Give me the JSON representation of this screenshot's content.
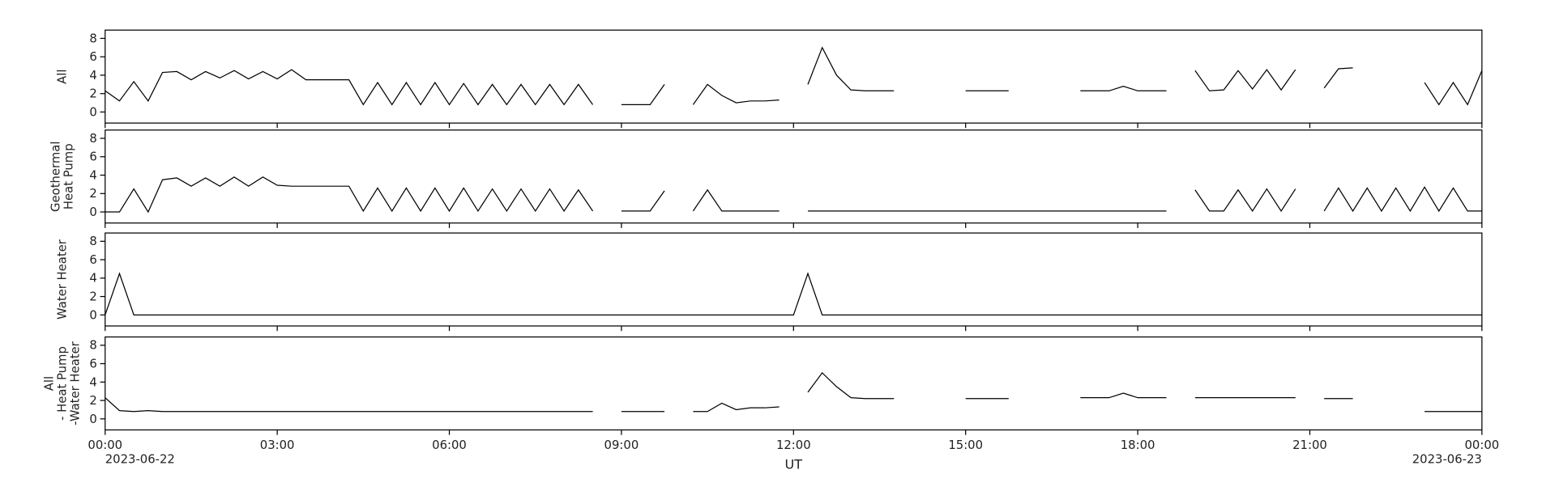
{
  "chart_data": [
    {
      "type": "line",
      "y_label": [
        "All"
      ],
      "color": "#000000",
      "xlim": [
        0,
        24
      ],
      "ylim": [
        -1.2,
        8.9
      ],
      "yticks": [
        0,
        2,
        4,
        6,
        8
      ],
      "xticks": [
        0,
        3,
        6,
        9,
        12,
        15,
        18,
        21,
        24
      ],
      "x": [
        0,
        0.25,
        0.5,
        0.75,
        1,
        1.25,
        1.5,
        1.75,
        2,
        2.25,
        2.5,
        2.75,
        3,
        3.25,
        3.5,
        3.75,
        4,
        4.25,
        4.5,
        4.75,
        5,
        5.25,
        5.5,
        5.75,
        6,
        6.25,
        6.5,
        6.75,
        7,
        7.25,
        7.5,
        7.75,
        8,
        8.25,
        8.5,
        8.75,
        9,
        9.25,
        9.5,
        9.75,
        10,
        10.25,
        10.5,
        10.75,
        11,
        11.25,
        11.5,
        11.75,
        12,
        12.25,
        12.5,
        12.75,
        13,
        13.25,
        13.5,
        13.75,
        14,
        14.25,
        14.5,
        14.75,
        15,
        15.25,
        15.5,
        15.75,
        16,
        16.25,
        16.5,
        16.75,
        17,
        17.25,
        17.5,
        17.75,
        18,
        18.25,
        18.5,
        18.75,
        19,
        19.25,
        19.5,
        19.75,
        20,
        20.25,
        20.5,
        20.75,
        21,
        21.25,
        21.5,
        21.75,
        22,
        22.25,
        22.5,
        22.75,
        23,
        23.25,
        23.5,
        23.75,
        24
      ],
      "values": [
        2.3,
        1.2,
        3.3,
        1.2,
        4.3,
        4.4,
        3.5,
        4.4,
        3.7,
        4.5,
        3.6,
        4.4,
        3.6,
        4.6,
        3.5,
        3.5,
        3.5,
        3.5,
        0.8,
        3.2,
        0.8,
        3.2,
        0.8,
        3.2,
        0.8,
        3.1,
        0.8,
        3.0,
        0.8,
        3.0,
        0.8,
        3.0,
        0.8,
        3.0,
        0.8,
        null,
        0.8,
        0.8,
        0.8,
        3.0,
        null,
        0.8,
        3.0,
        1.8,
        1.0,
        1.2,
        1.2,
        1.3,
        null,
        3.0,
        7.0,
        4.0,
        2.4,
        2.3,
        2.3,
        2.3,
        null,
        null,
        null,
        null,
        2.3,
        2.3,
        2.3,
        2.3,
        null,
        null,
        null,
        null,
        2.3,
        2.3,
        2.3,
        2.8,
        2.3,
        2.3,
        2.3,
        null,
        4.5,
        2.3,
        2.4,
        4.5,
        2.5,
        4.6,
        2.4,
        4.6,
        null,
        2.6,
        4.7,
        4.8,
        null,
        null,
        null,
        null,
        3.2,
        0.8,
        3.2,
        0.8,
        4.5
      ]
    },
    {
      "type": "line",
      "y_label": [
        "Geothermal",
        "Heat Pump"
      ],
      "color": "#000000",
      "xlim": [
        0,
        24
      ],
      "ylim": [
        -1.2,
        8.9
      ],
      "yticks": [
        0,
        2,
        4,
        6,
        8
      ],
      "xticks": [
        0,
        3,
        6,
        9,
        12,
        15,
        18,
        21,
        24
      ],
      "x": [
        0,
        0.25,
        0.5,
        0.75,
        1,
        1.25,
        1.5,
        1.75,
        2,
        2.25,
        2.5,
        2.75,
        3,
        3.25,
        3.5,
        3.75,
        4,
        4.25,
        4.5,
        4.75,
        5,
        5.25,
        5.5,
        5.75,
        6,
        6.25,
        6.5,
        6.75,
        7,
        7.25,
        7.5,
        7.75,
        8,
        8.25,
        8.5,
        8.75,
        9,
        9.25,
        9.5,
        9.75,
        10,
        10.25,
        10.5,
        10.75,
        11,
        11.25,
        11.5,
        11.75,
        12,
        12.25,
        12.5,
        12.75,
        13,
        13.25,
        13.5,
        13.75,
        14,
        14.25,
        14.5,
        14.75,
        15,
        15.25,
        15.5,
        15.75,
        16,
        16.25,
        16.5,
        16.75,
        17,
        17.25,
        17.5,
        17.75,
        18,
        18.25,
        18.5,
        18.75,
        19,
        19.25,
        19.5,
        19.75,
        20,
        20.25,
        20.5,
        20.75,
        21,
        21.25,
        21.5,
        21.75,
        22,
        22.25,
        22.5,
        22.75,
        23,
        23.25,
        23.5,
        23.75,
        24
      ],
      "values": [
        0,
        0,
        2.5,
        0,
        3.5,
        3.7,
        2.8,
        3.7,
        2.8,
        3.8,
        2.8,
        3.8,
        2.9,
        2.8,
        2.8,
        2.8,
        2.8,
        2.8,
        0.1,
        2.6,
        0.1,
        2.6,
        0.1,
        2.6,
        0.1,
        2.6,
        0.1,
        2.5,
        0.1,
        2.5,
        0.1,
        2.5,
        0.1,
        2.4,
        0.1,
        null,
        0.1,
        0.1,
        0.1,
        2.3,
        null,
        0.1,
        2.4,
        0.1,
        0.1,
        0.1,
        0.1,
        0.1,
        null,
        0.1,
        0.1,
        0.1,
        0.1,
        0.1,
        0.1,
        0.1,
        0.1,
        0.1,
        0.1,
        0.1,
        0.1,
        0.1,
        0.1,
        0.1,
        0.1,
        0.1,
        0.1,
        0.1,
        0.1,
        0.1,
        0.1,
        0.1,
        0.1,
        0.1,
        0.1,
        null,
        2.4,
        0.1,
        0.1,
        2.4,
        0.1,
        2.5,
        0.1,
        2.5,
        null,
        0.1,
        2.6,
        0.1,
        2.6,
        0.1,
        2.6,
        0.1,
        2.7,
        0.1,
        2.6,
        0.1,
        0.1
      ]
    },
    {
      "type": "line",
      "y_label": [
        "Water Heater"
      ],
      "color": "#000000",
      "xlim": [
        0,
        24
      ],
      "ylim": [
        -1.2,
        8.9
      ],
      "yticks": [
        0,
        2,
        4,
        6,
        8
      ],
      "xticks": [
        0,
        3,
        6,
        9,
        12,
        15,
        18,
        21,
        24
      ],
      "x": [
        0,
        0.25,
        0.5,
        0.75,
        1,
        1.25,
        1.5,
        1.75,
        2,
        2.25,
        2.5,
        2.75,
        3,
        3.25,
        3.5,
        3.75,
        4,
        4.25,
        4.5,
        4.75,
        5,
        5.25,
        5.5,
        5.75,
        6,
        6.25,
        6.5,
        6.75,
        7,
        7.25,
        7.5,
        7.75,
        8,
        8.25,
        8.5,
        8.75,
        9,
        9.25,
        9.5,
        9.75,
        10,
        10.25,
        10.5,
        10.75,
        11,
        11.25,
        11.5,
        11.75,
        12,
        12.25,
        12.5,
        12.75,
        13,
        13.25,
        13.5,
        13.75,
        14,
        14.25,
        14.5,
        14.75,
        15,
        15.25,
        15.5,
        15.75,
        16,
        16.25,
        16.5,
        16.75,
        17,
        17.25,
        17.5,
        17.75,
        18,
        18.25,
        18.5,
        18.75,
        19,
        19.25,
        19.5,
        19.75,
        20,
        20.25,
        20.5,
        20.75,
        21,
        21.25,
        21.5,
        21.75,
        22,
        22.25,
        22.5,
        22.75,
        23,
        23.25,
        23.5,
        23.75,
        24
      ],
      "values": [
        0,
        4.5,
        0,
        0,
        0,
        0,
        0,
        0,
        0,
        0,
        0,
        0,
        0,
        0,
        0,
        0,
        0,
        0,
        0,
        0,
        0,
        0,
        0,
        0,
        0,
        0,
        0,
        0,
        0,
        0,
        0,
        0,
        0,
        0,
        0,
        0,
        0,
        0,
        0,
        0,
        0,
        0,
        0,
        0,
        0,
        0,
        0,
        0,
        0,
        4.5,
        0,
        0,
        0,
        0,
        0,
        0,
        0,
        0,
        0,
        0,
        0,
        0,
        0,
        0,
        0,
        0,
        0,
        0,
        0,
        0,
        0,
        0,
        0,
        0,
        0,
        0,
        0,
        0,
        0,
        0,
        0,
        0,
        0,
        0,
        0,
        0,
        0,
        0,
        0,
        0,
        0,
        0,
        0,
        0,
        0,
        0,
        0
      ]
    },
    {
      "type": "line",
      "y_label": [
        "All",
        "- Heat Pump",
        "-Water Heater"
      ],
      "color": "#000000",
      "xlim": [
        0,
        24
      ],
      "ylim": [
        -1.2,
        8.9
      ],
      "yticks": [
        0,
        2,
        4,
        6,
        8
      ],
      "xticks": [
        {
          "value": 0,
          "label": "00:00"
        },
        {
          "value": 3,
          "label": "03:00"
        },
        {
          "value": 6,
          "label": "06:00"
        },
        {
          "value": 9,
          "label": "09:00"
        },
        {
          "value": 12,
          "label": "12:00"
        },
        {
          "value": 15,
          "label": "15:00"
        },
        {
          "value": 18,
          "label": "18:00"
        },
        {
          "value": 21,
          "label": "21:00"
        },
        {
          "value": 24,
          "label": "00:00"
        }
      ],
      "x_dates": [
        {
          "value": 0,
          "label": "2023-06-22"
        },
        {
          "value": 24,
          "label": "2023-06-23"
        }
      ],
      "x_label": "UT",
      "x": [
        0,
        0.25,
        0.5,
        0.75,
        1,
        1.25,
        1.5,
        1.75,
        2,
        2.25,
        2.5,
        2.75,
        3,
        3.25,
        3.5,
        3.75,
        4,
        4.25,
        4.5,
        4.75,
        5,
        5.25,
        5.5,
        5.75,
        6,
        6.25,
        6.5,
        6.75,
        7,
        7.25,
        7.5,
        7.75,
        8,
        8.25,
        8.5,
        8.75,
        9,
        9.25,
        9.5,
        9.75,
        10,
        10.25,
        10.5,
        10.75,
        11,
        11.25,
        11.5,
        11.75,
        12,
        12.25,
        12.5,
        12.75,
        13,
        13.25,
        13.5,
        13.75,
        14,
        14.25,
        14.5,
        14.75,
        15,
        15.25,
        15.5,
        15.75,
        16,
        16.25,
        16.5,
        16.75,
        17,
        17.25,
        17.5,
        17.75,
        18,
        18.25,
        18.5,
        18.75,
        19,
        19.25,
        19.5,
        19.75,
        20,
        20.25,
        20.5,
        20.75,
        21,
        21.25,
        21.5,
        21.75,
        22,
        22.25,
        22.5,
        22.75,
        23,
        23.25,
        23.5,
        23.75,
        24
      ],
      "values": [
        2.3,
        0.9,
        0.8,
        0.9,
        0.8,
        0.8,
        0.8,
        0.8,
        0.8,
        0.8,
        0.8,
        0.8,
        0.8,
        0.8,
        0.8,
        0.8,
        0.8,
        0.8,
        0.8,
        0.8,
        0.8,
        0.8,
        0.8,
        0.8,
        0.8,
        0.8,
        0.8,
        0.8,
        0.8,
        0.8,
        0.8,
        0.8,
        0.8,
        0.8,
        0.8,
        null,
        0.8,
        0.8,
        0.8,
        0.8,
        null,
        0.8,
        0.8,
        1.7,
        1.0,
        1.2,
        1.2,
        1.3,
        null,
        2.9,
        5.0,
        3.5,
        2.3,
        2.2,
        2.2,
        2.2,
        null,
        null,
        null,
        null,
        2.2,
        2.2,
        2.2,
        2.2,
        null,
        null,
        null,
        null,
        2.3,
        2.3,
        2.3,
        2.8,
        2.3,
        2.3,
        2.3,
        null,
        2.3,
        2.3,
        2.3,
        2.3,
        2.3,
        2.3,
        2.3,
        2.3,
        null,
        2.2,
        2.2,
        2.2,
        null,
        null,
        null,
        null,
        0.8,
        0.8,
        0.8,
        0.8,
        0.8
      ]
    }
  ]
}
